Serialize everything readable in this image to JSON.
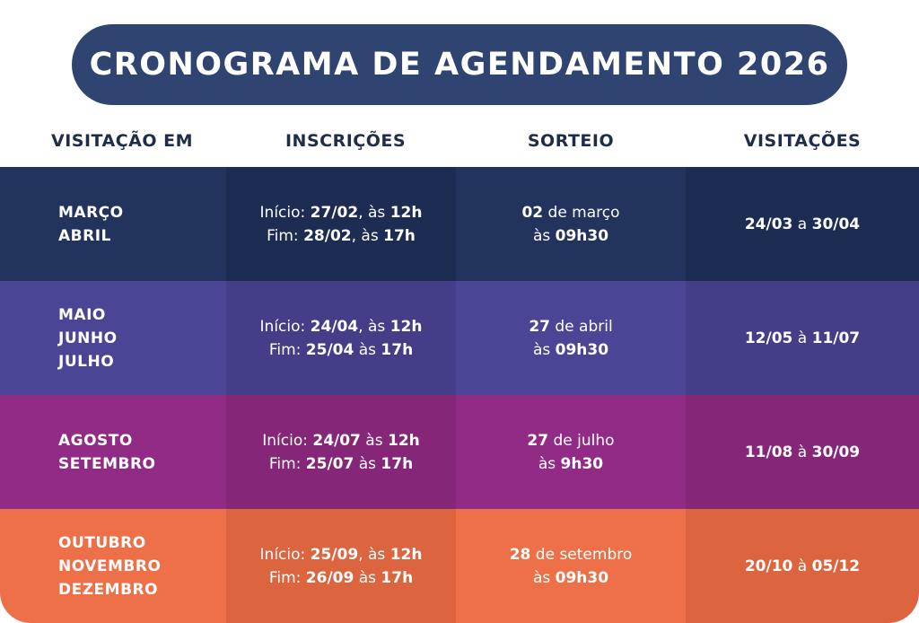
{
  "title": "CRONOGRAMA DE AGENDAMENTO 2026",
  "headers": {
    "visitacao_em": "VISITAÇÃO EM",
    "inscricoes": "INSCRIÇÕES",
    "sorteio": "SORTEIO",
    "visitacoes": "VISITAÇÕES"
  },
  "colors": {
    "title_bg": "#2f4470",
    "row1": [
      "#22345e",
      "#1d2c52",
      "#22345e",
      "#1d2c52"
    ],
    "row2": [
      "#4b4596",
      "#443d88",
      "#4b4596",
      "#443d88"
    ],
    "row3": [
      "#922b85",
      "#862679",
      "#922b85",
      "#862679"
    ],
    "row4": [
      "#ed7048",
      "#dc6540",
      "#ed7048",
      "#dc6540"
    ]
  },
  "rows": [
    {
      "months": [
        "MARÇO",
        "ABRIL"
      ],
      "inscricoes": {
        "inicio_label": "Início: ",
        "inicio_date": "27/02",
        "inicio_sep": ", às ",
        "inicio_time": "12h",
        "fim_label": "Fim: ",
        "fim_date": "28/02",
        "fim_sep": ", às ",
        "fim_time": "17h"
      },
      "sorteio": {
        "day": "02",
        "month_text": " de março",
        "at": "às ",
        "time": "09h30"
      },
      "visitacoes": {
        "start": "24/03",
        "conn": " a ",
        "end": "30/04"
      }
    },
    {
      "months": [
        "MAIO",
        "JUNHO",
        "JULHO"
      ],
      "inscricoes": {
        "inicio_label": "Início: ",
        "inicio_date": "24/04",
        "inicio_sep": ", às ",
        "inicio_time": "12h",
        "fim_label": "Fim: ",
        "fim_date": "25/04",
        "fim_sep": " às ",
        "fim_time": "17h"
      },
      "sorteio": {
        "day": "27",
        "month_text": " de abril",
        "at": "às ",
        "time": "09h30"
      },
      "visitacoes": {
        "start": "12/05",
        "conn": " à ",
        "end": "11/07"
      }
    },
    {
      "months": [
        "AGOSTO",
        "SETEMBRO"
      ],
      "inscricoes": {
        "inicio_label": "Início: ",
        "inicio_date": "24/07",
        "inicio_sep": " às ",
        "inicio_time": "12h",
        "fim_label": "Fim: ",
        "fim_date": "25/07",
        "fim_sep": " às ",
        "fim_time": "17h"
      },
      "sorteio": {
        "day": "27",
        "month_text": " de julho",
        "at": "às ",
        "time": "9h30"
      },
      "visitacoes": {
        "start": "11/08",
        "conn": " à ",
        "end": "30/09"
      }
    },
    {
      "months": [
        "OUTUBRO",
        "NOVEMBRO",
        "DEZEMBRO"
      ],
      "inscricoes": {
        "inicio_label": "Início: ",
        "inicio_date": "25/09",
        "inicio_sep": ", às ",
        "inicio_time": "12h",
        "fim_label": "Fim: ",
        "fim_date": "26/09",
        "fim_sep": " às ",
        "fim_time": "17h"
      },
      "sorteio": {
        "day": "28",
        "month_text": " de setembro",
        "at": "às ",
        "time": "09h30"
      },
      "visitacoes": {
        "start": "20/10",
        "conn": " à ",
        "end": "05/12"
      }
    }
  ]
}
